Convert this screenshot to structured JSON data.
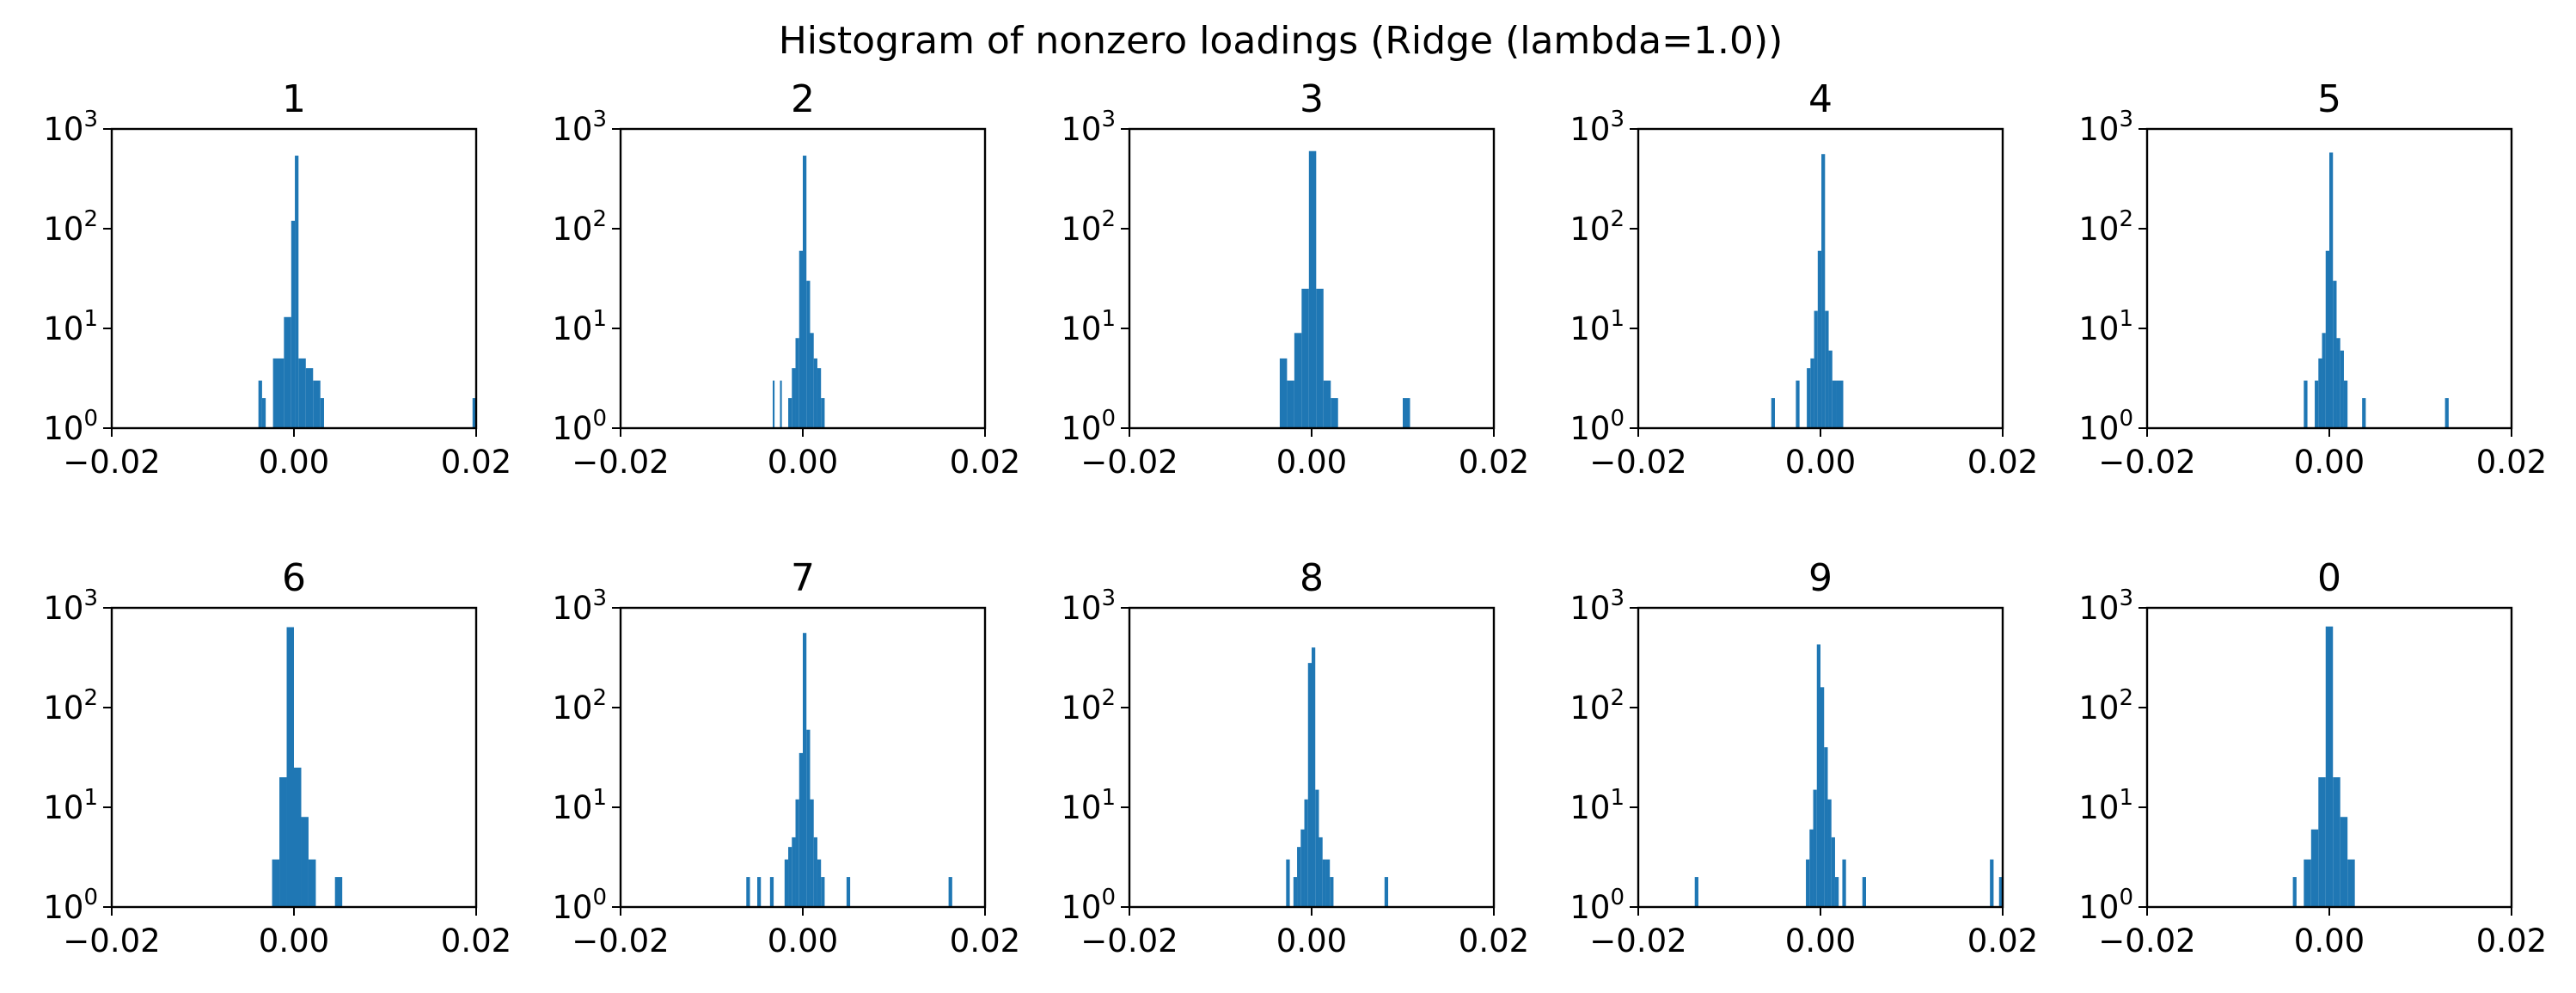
{
  "figure": {
    "suptitle": "Histogram of nonzero loadings (Ridge (lambda=1.0))"
  },
  "style": {
    "bar_color": "#1f77b4",
    "axis_color": "#000000",
    "background": "#ffffff"
  },
  "chart_data": [
    {
      "type": "bar",
      "title": "1",
      "x_scale": "linear",
      "y_scale": "log",
      "xlim": [
        -0.02,
        0.02
      ],
      "ylim": [
        1,
        1000
      ],
      "xticks": [
        "−0.02",
        "0.00",
        "0.02"
      ],
      "yticks": [
        {
          "base": "10",
          "exp": "0"
        },
        {
          "base": "10",
          "exp": "1"
        },
        {
          "base": "10",
          "exp": "2"
        },
        {
          "base": "10",
          "exp": "3"
        }
      ],
      "grid": false,
      "legend": "none",
      "bins": [
        {
          "x0": -0.0039,
          "x1": -0.0035,
          "count": 3
        },
        {
          "x0": -0.0035,
          "x1": -0.0031,
          "count": 2
        },
        {
          "x0": -0.0023,
          "x1": -0.0011,
          "count": 5
        },
        {
          "x0": -0.0011,
          "x1": -0.0003,
          "count": 13
        },
        {
          "x0": -0.0003,
          "x1": 0.0001,
          "count": 120
        },
        {
          "x0": 0.0001,
          "x1": 0.0005,
          "count": 540
        },
        {
          "x0": 0.0005,
          "x1": 0.0013,
          "count": 5
        },
        {
          "x0": 0.0013,
          "x1": 0.0021,
          "count": 4
        },
        {
          "x0": 0.0021,
          "x1": 0.0029,
          "count": 3
        },
        {
          "x0": 0.0029,
          "x1": 0.0033,
          "count": 2
        },
        {
          "x0": 0.0196,
          "x1": 0.02,
          "count": 2
        }
      ]
    },
    {
      "type": "bar",
      "title": "2",
      "x_scale": "linear",
      "y_scale": "log",
      "xlim": [
        -0.02,
        0.02
      ],
      "ylim": [
        1,
        1000
      ],
      "xticks": [
        "−0.02",
        "0.00",
        "0.02"
      ],
      "yticks": [
        {
          "base": "10",
          "exp": "0"
        },
        {
          "base": "10",
          "exp": "1"
        },
        {
          "base": "10",
          "exp": "2"
        },
        {
          "base": "10",
          "exp": "3"
        }
      ],
      "grid": false,
      "legend": "none",
      "bins": [
        {
          "x0": -0.0033,
          "x1": -0.0031,
          "count": 3
        },
        {
          "x0": -0.0025,
          "x1": -0.0023,
          "count": 3
        },
        {
          "x0": -0.0016,
          "x1": -0.0012,
          "count": 2
        },
        {
          "x0": -0.0012,
          "x1": -0.0008,
          "count": 4
        },
        {
          "x0": -0.0008,
          "x1": -0.0004,
          "count": 8
        },
        {
          "x0": -0.0004,
          "x1": 0.0,
          "count": 60
        },
        {
          "x0": 0.0,
          "x1": 0.0004,
          "count": 540
        },
        {
          "x0": 0.0004,
          "x1": 0.0008,
          "count": 30
        },
        {
          "x0": 0.0008,
          "x1": 0.0012,
          "count": 9
        },
        {
          "x0": 0.0012,
          "x1": 0.0016,
          "count": 5
        },
        {
          "x0": 0.0016,
          "x1": 0.002,
          "count": 4
        },
        {
          "x0": 0.002,
          "x1": 0.0024,
          "count": 2
        }
      ]
    },
    {
      "type": "bar",
      "title": "3",
      "x_scale": "linear",
      "y_scale": "log",
      "xlim": [
        -0.02,
        0.02
      ],
      "ylim": [
        1,
        1000
      ],
      "xticks": [
        "−0.02",
        "0.00",
        "0.02"
      ],
      "yticks": [
        {
          "base": "10",
          "exp": "0"
        },
        {
          "base": "10",
          "exp": "1"
        },
        {
          "base": "10",
          "exp": "2"
        },
        {
          "base": "10",
          "exp": "3"
        }
      ],
      "grid": false,
      "legend": "none",
      "bins": [
        {
          "x0": -0.0035,
          "x1": -0.0027,
          "count": 5
        },
        {
          "x0": -0.0027,
          "x1": -0.0019,
          "count": 3
        },
        {
          "x0": -0.0019,
          "x1": -0.0011,
          "count": 9
        },
        {
          "x0": -0.0011,
          "x1": -0.0003,
          "count": 25
        },
        {
          "x0": -0.0003,
          "x1": 0.0005,
          "count": 600
        },
        {
          "x0": 0.0005,
          "x1": 0.0013,
          "count": 25
        },
        {
          "x0": 0.0013,
          "x1": 0.0021,
          "count": 3
        },
        {
          "x0": 0.0021,
          "x1": 0.0029,
          "count": 2
        },
        {
          "x0": 0.01,
          "x1": 0.0108,
          "count": 2
        }
      ]
    },
    {
      "type": "bar",
      "title": "4",
      "x_scale": "linear",
      "y_scale": "log",
      "xlim": [
        -0.02,
        0.02
      ],
      "ylim": [
        1,
        1000
      ],
      "xticks": [
        "−0.02",
        "0.00",
        "0.02"
      ],
      "yticks": [
        {
          "base": "10",
          "exp": "0"
        },
        {
          "base": "10",
          "exp": "1"
        },
        {
          "base": "10",
          "exp": "2"
        },
        {
          "base": "10",
          "exp": "3"
        }
      ],
      "grid": false,
      "legend": "none",
      "bins": [
        {
          "x0": -0.0054,
          "x1": -0.005,
          "count": 2
        },
        {
          "x0": -0.0027,
          "x1": -0.0023,
          "count": 3
        },
        {
          "x0": -0.0015,
          "x1": -0.0011,
          "count": 4
        },
        {
          "x0": -0.0011,
          "x1": -0.0007,
          "count": 5
        },
        {
          "x0": -0.0007,
          "x1": -0.0003,
          "count": 15
        },
        {
          "x0": -0.0003,
          "x1": 0.0001,
          "count": 60
        },
        {
          "x0": 0.0001,
          "x1": 0.0005,
          "count": 560
        },
        {
          "x0": 0.0005,
          "x1": 0.0009,
          "count": 15
        },
        {
          "x0": 0.0009,
          "x1": 0.0013,
          "count": 6
        },
        {
          "x0": 0.0013,
          "x1": 0.0017,
          "count": 3
        },
        {
          "x0": 0.0017,
          "x1": 0.0025,
          "count": 3
        }
      ]
    },
    {
      "type": "bar",
      "title": "5",
      "x_scale": "linear",
      "y_scale": "log",
      "xlim": [
        -0.02,
        0.02
      ],
      "ylim": [
        1,
        1000
      ],
      "xticks": [
        "−0.02",
        "0.00",
        "0.02"
      ],
      "yticks": [
        {
          "base": "10",
          "exp": "0"
        },
        {
          "base": "10",
          "exp": "1"
        },
        {
          "base": "10",
          "exp": "2"
        },
        {
          "base": "10",
          "exp": "3"
        }
      ],
      "grid": false,
      "legend": "none",
      "bins": [
        {
          "x0": -0.0028,
          "x1": -0.0024,
          "count": 3
        },
        {
          "x0": -0.0016,
          "x1": -0.0012,
          "count": 3
        },
        {
          "x0": -0.0012,
          "x1": -0.0008,
          "count": 5
        },
        {
          "x0": -0.0008,
          "x1": -0.0004,
          "count": 9
        },
        {
          "x0": -0.0004,
          "x1": 0.0,
          "count": 60
        },
        {
          "x0": 0.0,
          "x1": 0.0004,
          "count": 580
        },
        {
          "x0": 0.0004,
          "x1": 0.0008,
          "count": 30
        },
        {
          "x0": 0.0008,
          "x1": 0.0012,
          "count": 8
        },
        {
          "x0": 0.0012,
          "x1": 0.0016,
          "count": 6
        },
        {
          "x0": 0.0016,
          "x1": 0.002,
          "count": 3
        },
        {
          "x0": 0.0036,
          "x1": 0.004,
          "count": 2
        },
        {
          "x0": 0.0127,
          "x1": 0.0131,
          "count": 2
        }
      ]
    },
    {
      "type": "bar",
      "title": "6",
      "x_scale": "linear",
      "y_scale": "log",
      "xlim": [
        -0.02,
        0.02
      ],
      "ylim": [
        1,
        1000
      ],
      "xticks": [
        "−0.02",
        "0.00",
        "0.02"
      ],
      "yticks": [
        {
          "base": "10",
          "exp": "0"
        },
        {
          "base": "10",
          "exp": "1"
        },
        {
          "base": "10",
          "exp": "2"
        },
        {
          "base": "10",
          "exp": "3"
        }
      ],
      "grid": false,
      "legend": "none",
      "bins": [
        {
          "x0": -0.0024,
          "x1": -0.0016,
          "count": 3
        },
        {
          "x0": -0.0016,
          "x1": -0.0008,
          "count": 20
        },
        {
          "x0": -0.0008,
          "x1": 0.0,
          "count": 640
        },
        {
          "x0": 0.0,
          "x1": 0.0008,
          "count": 25
        },
        {
          "x0": 0.0008,
          "x1": 0.0016,
          "count": 8
        },
        {
          "x0": 0.0016,
          "x1": 0.0024,
          "count": 3
        },
        {
          "x0": 0.0045,
          "x1": 0.0053,
          "count": 2
        }
      ]
    },
    {
      "type": "bar",
      "title": "7",
      "x_scale": "linear",
      "y_scale": "log",
      "xlim": [
        -0.02,
        0.02
      ],
      "ylim": [
        1,
        1000
      ],
      "xticks": [
        "−0.02",
        "0.00",
        "0.02"
      ],
      "yticks": [
        {
          "base": "10",
          "exp": "0"
        },
        {
          "base": "10",
          "exp": "1"
        },
        {
          "base": "10",
          "exp": "2"
        },
        {
          "base": "10",
          "exp": "3"
        }
      ],
      "grid": false,
      "legend": "none",
      "bins": [
        {
          "x0": -0.0062,
          "x1": -0.0058,
          "count": 2
        },
        {
          "x0": -0.005,
          "x1": -0.0046,
          "count": 2
        },
        {
          "x0": -0.0036,
          "x1": -0.0032,
          "count": 2
        },
        {
          "x0": -0.002,
          "x1": -0.0016,
          "count": 3
        },
        {
          "x0": -0.0016,
          "x1": -0.0012,
          "count": 4
        },
        {
          "x0": -0.0012,
          "x1": -0.0008,
          "count": 5
        },
        {
          "x0": -0.0008,
          "x1": -0.0004,
          "count": 12
        },
        {
          "x0": -0.0004,
          "x1": 0.0,
          "count": 35
        },
        {
          "x0": 0.0,
          "x1": 0.0004,
          "count": 560
        },
        {
          "x0": 0.0004,
          "x1": 0.0008,
          "count": 60
        },
        {
          "x0": 0.0008,
          "x1": 0.0012,
          "count": 12
        },
        {
          "x0": 0.0012,
          "x1": 0.0016,
          "count": 5
        },
        {
          "x0": 0.0016,
          "x1": 0.002,
          "count": 3
        },
        {
          "x0": 0.002,
          "x1": 0.0024,
          "count": 2
        },
        {
          "x0": 0.0048,
          "x1": 0.0052,
          "count": 2
        },
        {
          "x0": 0.016,
          "x1": 0.0164,
          "count": 2
        }
      ]
    },
    {
      "type": "bar",
      "title": "8",
      "x_scale": "linear",
      "y_scale": "log",
      "xlim": [
        -0.02,
        0.02
      ],
      "ylim": [
        1,
        1000
      ],
      "xticks": [
        "−0.02",
        "0.00",
        "0.02"
      ],
      "yticks": [
        {
          "base": "10",
          "exp": "0"
        },
        {
          "base": "10",
          "exp": "1"
        },
        {
          "base": "10",
          "exp": "2"
        },
        {
          "base": "10",
          "exp": "3"
        }
      ],
      "grid": false,
      "legend": "none",
      "bins": [
        {
          "x0": -0.0028,
          "x1": -0.0024,
          "count": 3
        },
        {
          "x0": -0.002,
          "x1": -0.0016,
          "count": 2
        },
        {
          "x0": -0.0016,
          "x1": -0.0012,
          "count": 4
        },
        {
          "x0": -0.0012,
          "x1": -0.0008,
          "count": 6
        },
        {
          "x0": -0.0008,
          "x1": -0.0004,
          "count": 12
        },
        {
          "x0": -0.0004,
          "x1": 0.0,
          "count": 280
        },
        {
          "x0": 0.0,
          "x1": 0.0004,
          "count": 400
        },
        {
          "x0": 0.0004,
          "x1": 0.0008,
          "count": 15
        },
        {
          "x0": 0.0008,
          "x1": 0.0012,
          "count": 5
        },
        {
          "x0": 0.0012,
          "x1": 0.0016,
          "count": 3
        },
        {
          "x0": 0.0016,
          "x1": 0.002,
          "count": 3
        },
        {
          "x0": 0.002,
          "x1": 0.0024,
          "count": 2
        },
        {
          "x0": 0.008,
          "x1": 0.0084,
          "count": 2
        }
      ]
    },
    {
      "type": "bar",
      "title": "9",
      "x_scale": "linear",
      "y_scale": "log",
      "xlim": [
        -0.02,
        0.02
      ],
      "ylim": [
        1,
        1000
      ],
      "xticks": [
        "−0.02",
        "0.00",
        "0.02"
      ],
      "yticks": [
        {
          "base": "10",
          "exp": "0"
        },
        {
          "base": "10",
          "exp": "1"
        },
        {
          "base": "10",
          "exp": "2"
        },
        {
          "base": "10",
          "exp": "3"
        }
      ],
      "grid": false,
      "legend": "none",
      "bins": [
        {
          "x0": -0.0138,
          "x1": -0.0134,
          "count": 2
        },
        {
          "x0": -0.0016,
          "x1": -0.0012,
          "count": 3
        },
        {
          "x0": -0.0012,
          "x1": -0.0008,
          "count": 6
        },
        {
          "x0": -0.0008,
          "x1": -0.0004,
          "count": 15
        },
        {
          "x0": -0.0004,
          "x1": 0.0,
          "count": 430
        },
        {
          "x0": 0.0,
          "x1": 0.0004,
          "count": 160
        },
        {
          "x0": 0.0004,
          "x1": 0.0008,
          "count": 40
        },
        {
          "x0": 0.0008,
          "x1": 0.0012,
          "count": 12
        },
        {
          "x0": 0.0012,
          "x1": 0.0016,
          "count": 5
        },
        {
          "x0": 0.0016,
          "x1": 0.002,
          "count": 2
        },
        {
          "x0": 0.0024,
          "x1": 0.0028,
          "count": 3
        },
        {
          "x0": 0.0046,
          "x1": 0.005,
          "count": 2
        },
        {
          "x0": 0.0186,
          "x1": 0.019,
          "count": 3
        },
        {
          "x0": 0.0196,
          "x1": 0.02,
          "count": 2
        }
      ]
    },
    {
      "type": "bar",
      "title": "0",
      "x_scale": "linear",
      "y_scale": "log",
      "xlim": [
        -0.02,
        0.02
      ],
      "ylim": [
        1,
        1000
      ],
      "xticks": [
        "−0.02",
        "0.00",
        "0.02"
      ],
      "yticks": [
        {
          "base": "10",
          "exp": "0"
        },
        {
          "base": "10",
          "exp": "1"
        },
        {
          "base": "10",
          "exp": "2"
        },
        {
          "base": "10",
          "exp": "3"
        }
      ],
      "grid": false,
      "legend": "none",
      "bins": [
        {
          "x0": -0.004,
          "x1": -0.0036,
          "count": 2
        },
        {
          "x0": -0.0028,
          "x1": -0.002,
          "count": 3
        },
        {
          "x0": -0.002,
          "x1": -0.0012,
          "count": 6
        },
        {
          "x0": -0.0012,
          "x1": -0.0004,
          "count": 20
        },
        {
          "x0": -0.0004,
          "x1": 0.0004,
          "count": 650
        },
        {
          "x0": 0.0004,
          "x1": 0.0012,
          "count": 20
        },
        {
          "x0": 0.0012,
          "x1": 0.002,
          "count": 8
        },
        {
          "x0": 0.002,
          "x1": 0.0028,
          "count": 3
        }
      ]
    }
  ]
}
